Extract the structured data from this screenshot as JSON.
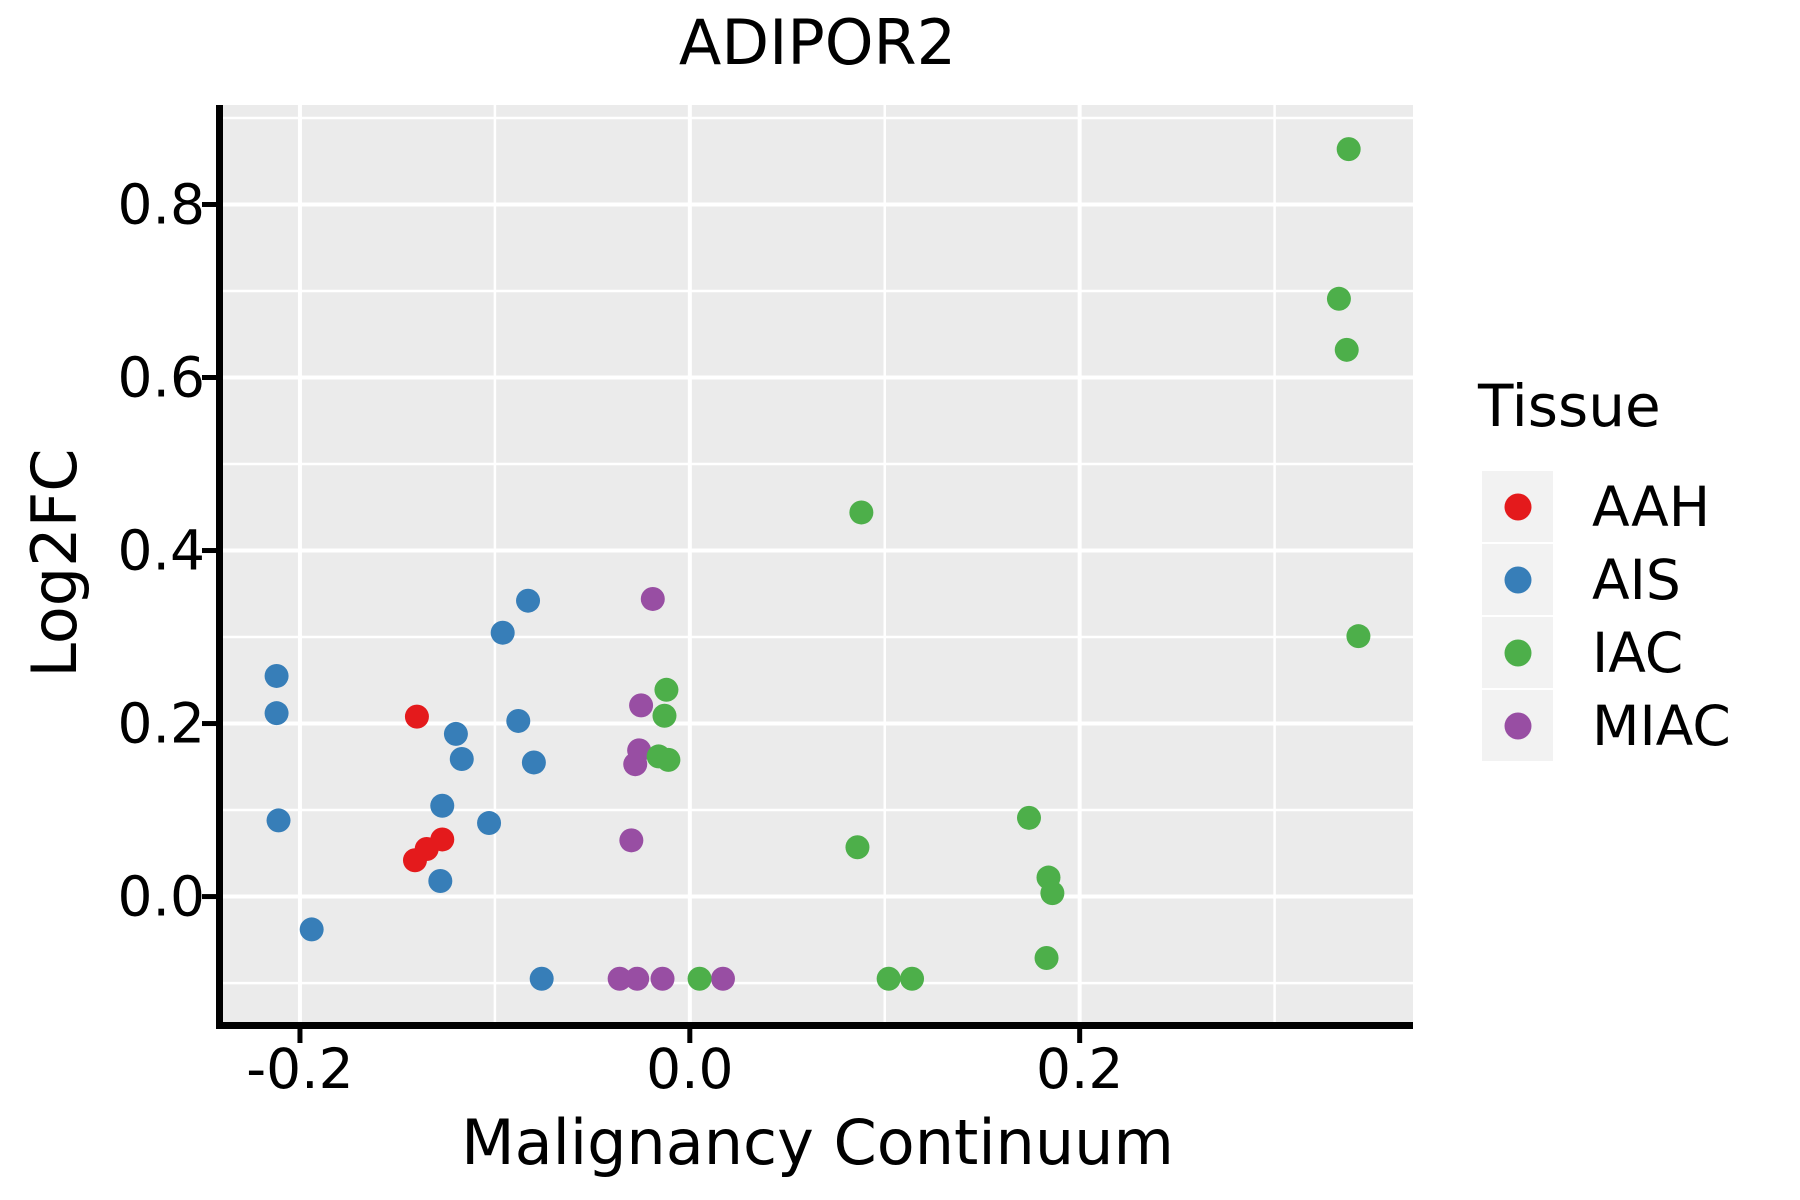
{
  "title": "ADIPOR2",
  "legend": {
    "title": "Tissue",
    "items": [
      {
        "label": "AAH",
        "color": "#E41A1C"
      },
      {
        "label": "AIS",
        "color": "#377EB8"
      },
      {
        "label": "IAC",
        "color": "#4DAF4A"
      },
      {
        "label": "MIAC",
        "color": "#984EA3"
      }
    ]
  },
  "chart_data": {
    "type": "scatter",
    "title": "ADIPOR2",
    "xlabel": "Malignancy Continuum",
    "ylabel": "Log2FC",
    "xlim": [
      -0.24,
      0.371
    ],
    "ylim": [
      -0.145,
      0.915
    ],
    "x_major_ticks": [
      -0.2,
      0.0,
      0.2
    ],
    "x_minor_ticks": [
      -0.1,
      0.1,
      0.3
    ],
    "x_tick_labels": [
      "-0.2",
      "0.0",
      "0.2"
    ],
    "y_major_ticks": [
      0.0,
      0.2,
      0.4,
      0.6,
      0.8
    ],
    "y_minor_ticks": [
      -0.1,
      0.1,
      0.3,
      0.5,
      0.7,
      0.9
    ],
    "y_tick_labels": [
      "0.0",
      "0.2",
      "0.4",
      "0.6",
      "0.8"
    ],
    "grid": true,
    "panel_bg": "#EBEBEB",
    "grid_color": "#FFFFFF",
    "axis_color": "#000000",
    "legend_position": "right",
    "point_radius_px": 12,
    "series": [
      {
        "name": "AAH",
        "color": "#E41A1C",
        "points": [
          [
            -0.14,
            0.208
          ],
          [
            -0.127,
            0.066
          ],
          [
            -0.135,
            0.055
          ],
          [
            -0.141,
            0.042
          ]
        ]
      },
      {
        "name": "AIS",
        "color": "#377EB8",
        "points": [
          [
            -0.212,
            0.255
          ],
          [
            -0.212,
            0.212
          ],
          [
            -0.211,
            0.088
          ],
          [
            -0.194,
            -0.038
          ],
          [
            -0.083,
            0.342
          ],
          [
            -0.096,
            0.305
          ],
          [
            -0.12,
            0.188
          ],
          [
            -0.117,
            0.159
          ],
          [
            -0.088,
            0.203
          ],
          [
            -0.08,
            0.155
          ],
          [
            -0.127,
            0.105
          ],
          [
            -0.103,
            0.085
          ],
          [
            -0.128,
            0.018
          ],
          [
            -0.076,
            -0.095
          ]
        ]
      },
      {
        "name": "MIAC",
        "color": "#984EA3",
        "points": [
          [
            -0.019,
            0.344
          ],
          [
            -0.025,
            0.221
          ],
          [
            -0.026,
            0.169
          ],
          [
            -0.028,
            0.153
          ],
          [
            -0.03,
            0.065
          ],
          [
            -0.036,
            -0.095
          ],
          [
            -0.027,
            -0.095
          ],
          [
            -0.014,
            -0.095
          ],
          [
            0.017,
            -0.095
          ]
        ]
      },
      {
        "name": "IAC",
        "color": "#4DAF4A",
        "points": [
          [
            0.338,
            0.864
          ],
          [
            0.333,
            0.691
          ],
          [
            0.337,
            0.632
          ],
          [
            0.343,
            0.301
          ],
          [
            0.088,
            0.444
          ],
          [
            -0.012,
            0.239
          ],
          [
            -0.013,
            0.209
          ],
          [
            -0.016,
            0.162
          ],
          [
            -0.011,
            0.158
          ],
          [
            0.086,
            0.057
          ],
          [
            0.174,
            0.091
          ],
          [
            0.184,
            0.022
          ],
          [
            0.186,
            0.004
          ],
          [
            0.183,
            -0.071
          ],
          [
            0.005,
            -0.095
          ],
          [
            0.102,
            -0.095
          ],
          [
            0.114,
            -0.095
          ]
        ]
      }
    ]
  }
}
